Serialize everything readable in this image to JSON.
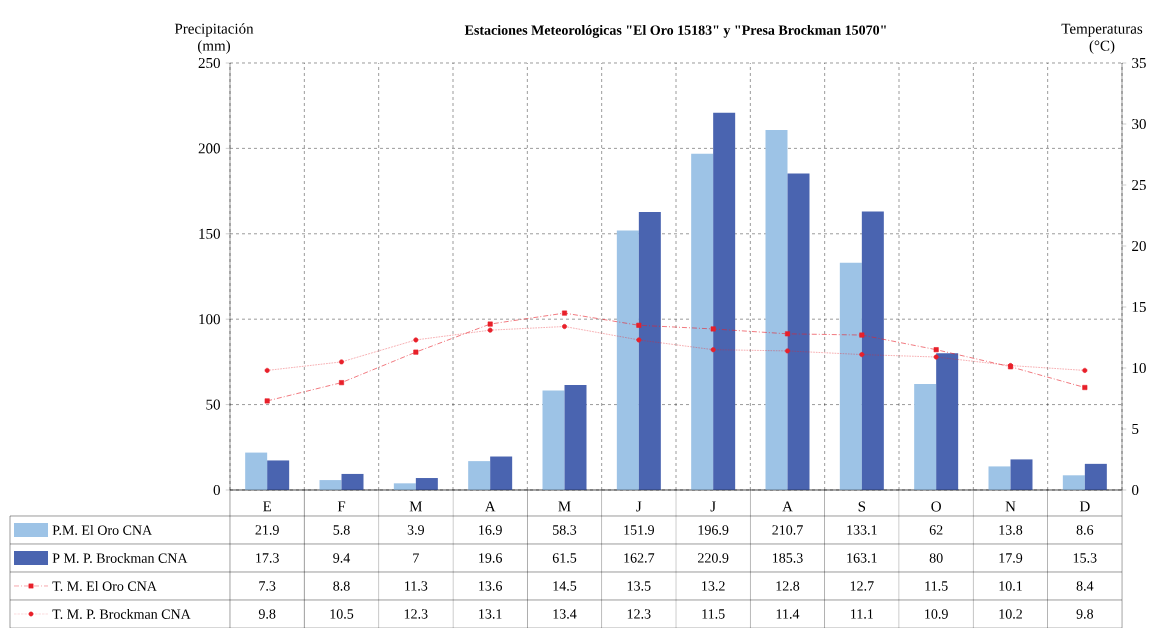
{
  "chart_data": {
    "type": "bar",
    "title": "Estaciones Meteorológicas \"El Oro 15183\" y \"Presa Brockman 15070\"",
    "ylabel": "Precipitación (mm)",
    "y2label": "Temperaturas (°C)",
    "categories": [
      "E",
      "F",
      "M",
      "A",
      "M",
      "J",
      "J",
      "A",
      "S",
      "O",
      "N",
      "D"
    ],
    "series": [
      {
        "name": "P.M. El Oro CNA",
        "color": "#9dc3e6",
        "values": [
          21.9,
          5.8,
          3.9,
          16.9,
          58.3,
          151.9,
          196.9,
          210.7,
          133.1,
          62,
          13.8,
          8.6
        ]
      },
      {
        "name": "P M. P. Brockman CNA",
        "color": "#4a64b0",
        "values": [
          17.3,
          9.4,
          7,
          19.6,
          61.5,
          162.7,
          220.9,
          185.3,
          163.1,
          80,
          17.9,
          15.3
        ]
      },
      {
        "name": "T. M. El Oro CNA",
        "type": "line",
        "axis": "y2",
        "color": "#e8202a",
        "marker": "square",
        "line_style": "dashed",
        "values": [
          7.3,
          8.8,
          11.3,
          13.6,
          14.5,
          13.5,
          13.2,
          12.8,
          12.7,
          11.5,
          10.1,
          8.4
        ]
      },
      {
        "name": "T. M. P. Brockman CNA",
        "type": "line",
        "axis": "y2",
        "color": "#e8202a",
        "marker": "circle",
        "line_style": "dotted",
        "values": [
          9.8,
          10.5,
          12.3,
          13.1,
          13.4,
          12.3,
          11.5,
          11.4,
          11.1,
          10.9,
          10.2,
          9.8
        ]
      }
    ],
    "ylim": [
      0,
      250
    ],
    "yticks": [
      0,
      50,
      100,
      150,
      200,
      250
    ],
    "y2lim": [
      0,
      35
    ],
    "y2ticks": [
      0,
      5,
      10,
      15,
      20,
      25,
      30,
      35
    ],
    "grid": true,
    "legend": "bottom",
    "data_labels": true
  }
}
